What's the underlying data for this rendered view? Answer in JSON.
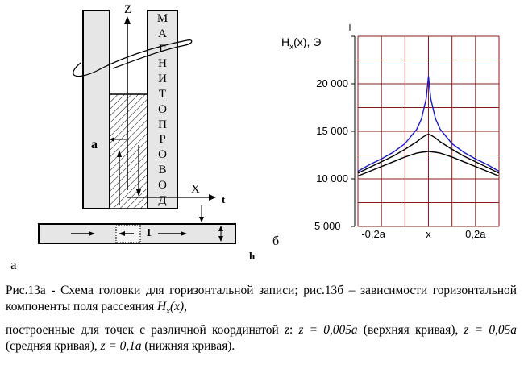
{
  "figure_a": {
    "z_label": "Z",
    "x_label": "X",
    "t_label": "t",
    "h_label": "h",
    "a_gap_label": "а",
    "layer_label": "1",
    "core_letters": [
      "М",
      "А",
      "Г",
      "Н",
      "И",
      "Т",
      "О",
      "П",
      "Р",
      "О",
      "В",
      "О",
      "Д"
    ],
    "panel_label": "а"
  },
  "figure_b": {
    "y_axis_label_main": "H",
    "y_axis_label_sub": "x",
    "y_axis_label_rest": "(x), Э",
    "x_axis_label": "x",
    "panel_label": "б"
  },
  "chart_data": {
    "type": "line",
    "title": "",
    "ylabel": "Hx(x), Э",
    "xlabel": "x",
    "x_ticks": [
      "-0,2a",
      "x",
      "0,2a"
    ],
    "y_ticks": [
      "5 000",
      "10 000",
      "15 000",
      "20 000"
    ],
    "xlim": [
      -0.3,
      0.3
    ],
    "ylim": [
      5000,
      25000
    ],
    "grid": true,
    "x": [
      -0.3,
      -0.25,
      -0.2,
      -0.15,
      -0.1,
      -0.05,
      -0.03,
      -0.01,
      0.0,
      0.01,
      0.03,
      0.05,
      0.1,
      0.15,
      0.2,
      0.25,
      0.3
    ],
    "series": [
      {
        "values": [
          10800,
          11500,
          12100,
          12800,
          13700,
          15200,
          16300,
          18400,
          20800,
          18400,
          16300,
          15200,
          13700,
          12800,
          12100,
          11500,
          10800
        ],
        "color": "#1a1ac8"
      },
      {
        "values": [
          10600,
          11200,
          11800,
          12400,
          13100,
          13900,
          14300,
          14600,
          14700,
          14600,
          14300,
          13900,
          13100,
          12400,
          11800,
          11200,
          10600
        ],
        "color": "#000000"
      },
      {
        "values": [
          10300,
          10800,
          11300,
          11800,
          12300,
          12700,
          12800,
          12850,
          12900,
          12850,
          12800,
          12700,
          12300,
          11800,
          11300,
          10800,
          10300
        ],
        "color": "#000000"
      }
    ]
  },
  "caption": {
    "line1": "Рис.13а - Схема головки для горизонтальной записи; рис.13б – зависимости горизонтальной компоненты поля рассеяния ",
    "hx": "H",
    "hx_sub": "x",
    "hx_arg": "(x),",
    "line2a": " построенные для точек с  различной координатой ",
    "z1": "z",
    "colon": ": ",
    "z2": "z = 0,005a",
    "p1": " (верхняя кривая), ",
    "z3": "z = 0,05a",
    "p2": " (средняя кривая), ",
    "z4": "z = 0,1a",
    "p3": " (нижняя кривая)."
  }
}
